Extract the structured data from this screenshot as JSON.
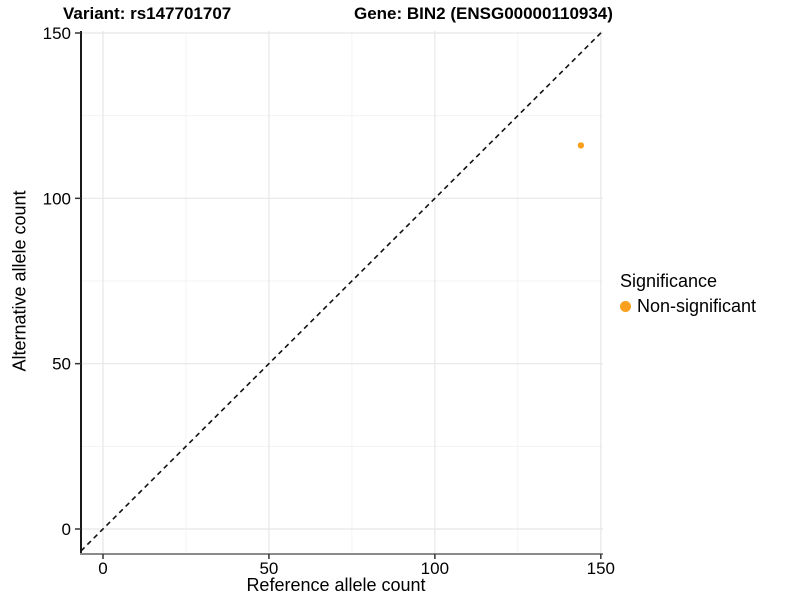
{
  "chart_data": {
    "type": "scatter",
    "title_left": "Variant: rs147701707",
    "title_right": "Gene: BIN2 (ENSG00000110934)",
    "xlabel": "Reference allele count",
    "ylabel": "Alternative allele count",
    "xlim": [
      -7,
      151
    ],
    "ylim": [
      -8,
      151
    ],
    "x_ticks": [
      0,
      50,
      100,
      150
    ],
    "y_ticks": [
      0,
      50,
      100,
      150
    ],
    "x_minor_ticks": [
      25,
      75,
      125
    ],
    "y_minor_ticks": [
      25,
      75,
      125
    ],
    "grid": "major+minor on white panel",
    "identity_line": {
      "style": "dashed",
      "slope": 1,
      "intercept": 0,
      "color": "#111111"
    },
    "series": [
      {
        "name": "Non-significant",
        "color": "#F9A11E",
        "points": [
          {
            "x": 144,
            "y": 116
          }
        ]
      }
    ],
    "legend": {
      "title": "Significance",
      "position": "right",
      "items": [
        {
          "label": "Non-significant",
          "color": "#F9A11E"
        }
      ]
    },
    "style": {
      "background": "#FFFFFF",
      "grid_major": "#E7E7E7",
      "grid_minor": "#F3F3F3",
      "axis_line_y": "#1A1A1A",
      "axis_line_x": "#8A8A8A",
      "tick_mark": "#333333",
      "text_color": "#000000"
    }
  }
}
